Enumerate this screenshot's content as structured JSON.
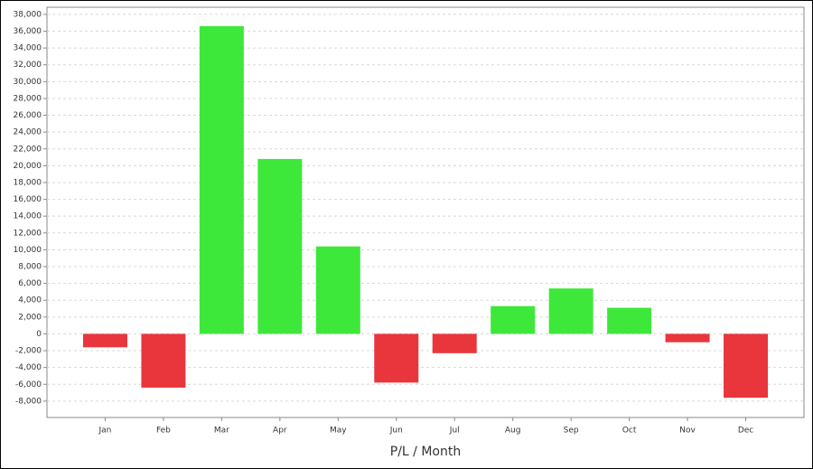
{
  "chart_data": {
    "type": "bar",
    "x_label": "P/L / Month",
    "categories": [
      "Jan",
      "Feb",
      "Mar",
      "Apr",
      "May",
      "Jun",
      "Jul",
      "Aug",
      "Sep",
      "Oct",
      "Nov",
      "Dec"
    ],
    "values": [
      -1600,
      -6400,
      36600,
      20800,
      10400,
      -5800,
      -2300,
      3300,
      5400,
      3100,
      -1000,
      -7600
    ],
    "positive_color": "#3ee83a",
    "negative_color": "#e8363c",
    "ylim": [
      -9950,
      38850
    ],
    "yticks": [
      {
        "value": -8000,
        "label": "-8,000"
      },
      {
        "value": -6000,
        "label": "-6,000"
      },
      {
        "value": -4000,
        "label": "-4,000"
      },
      {
        "value": -2000,
        "label": "-2,000"
      },
      0,
      {
        "value": 2000,
        "label": "2,000"
      },
      {
        "value": 4000,
        "label": "4,000"
      },
      {
        "value": 6000,
        "label": "6,000"
      },
      {
        "value": 8000,
        "label": "8,000"
      },
      {
        "value": 10000,
        "label": "10,000"
      },
      {
        "value": 12000,
        "label": "12,000"
      },
      {
        "value": 14000,
        "label": "14,000"
      },
      {
        "value": 16000,
        "label": "16,000"
      },
      {
        "value": 18000,
        "label": "18,000"
      },
      {
        "value": 20000,
        "label": "20,000"
      },
      {
        "value": 22000,
        "label": "22,000"
      },
      {
        "value": 24000,
        "label": "24,000"
      },
      {
        "value": 26000,
        "label": "26,000"
      },
      {
        "value": 28000,
        "label": "28,000"
      },
      {
        "value": 30000,
        "label": "30,000"
      },
      {
        "value": 32000,
        "label": "32,000"
      },
      {
        "value": 34000,
        "label": "34,000"
      },
      {
        "value": 36000,
        "label": "36,000"
      },
      {
        "value": 38000,
        "label": "38,000"
      }
    ],
    "grid": true
  }
}
